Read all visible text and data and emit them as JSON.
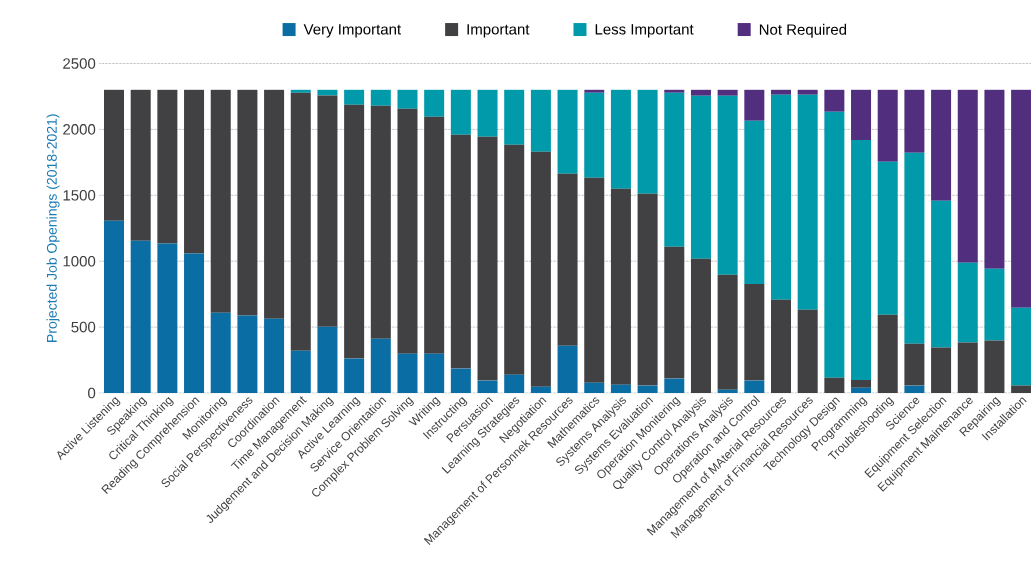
{
  "chart_data": {
    "type": "bar",
    "stacked": true,
    "ylabel": "Projected Job Openings (2018-2021)",
    "categories": [
      "Active Listening",
      "Speaking",
      "Critical Thinking",
      "Reading Comprehension",
      "Monitoring",
      "Social Perspectiveness",
      "Coordination",
      "Time Management",
      "Judgement and Decision Making",
      "Active Learning",
      "Service Orientation",
      "Complex Problem Solving",
      "Writing",
      "Instructing",
      "Persuasion",
      "Learning Strategies",
      "Negotiation",
      "Management of Personnek Resources",
      "Mathematics",
      "Systems Analysis",
      "Systems Evaluation",
      "Operation Monitering",
      "Quality Control Analysis",
      "Operations Analysis",
      "Operation and Control",
      "Management of MAterial Resources",
      "Management of Financial Resources",
      "Technology Design",
      "Programming",
      "Troubleshooting",
      "Science",
      "Equipment Selection",
      "Equipment Maintenance",
      "Repairing",
      "Installation"
    ],
    "series": [
      {
        "name": "Very Important",
        "color": "#0a6ea4",
        "values": [
          1307,
          1156,
          1135,
          1059,
          609,
          587,
          564,
          321,
          503,
          261,
          412,
          298,
          298,
          185,
          94,
          139,
          48,
          359,
          78,
          63,
          56,
          109,
          0,
          25,
          94,
          0,
          0,
          0,
          40,
          0,
          56,
          0,
          0,
          0,
          0
        ]
      },
      {
        "name": "Important",
        "color": "#414042",
        "values": [
          993,
          1144,
          1165,
          1241,
          1691,
          1713,
          1736,
          1957,
          1755,
          1926,
          1768,
          1859,
          1798,
          1775,
          1850,
          1745,
          1783,
          1305,
          1555,
          1487,
          1456,
          1001,
          1019,
          873,
          733,
          708,
          632,
          116,
          59,
          594,
          318,
          346,
          384,
          399,
          56
        ]
      },
      {
        "name": "Less Important",
        "color": "#009aaa",
        "values": [
          0,
          0,
          0,
          0,
          0,
          0,
          0,
          22,
          42,
          113,
          120,
          143,
          204,
          340,
          356,
          416,
          469,
          636,
          645,
          750,
          788,
          1168,
          1236,
          1357,
          1239,
          1555,
          1631,
          2018,
          1820,
          1161,
          1449,
          1113,
          605,
          544,
          591
        ]
      },
      {
        "name": "Not Required",
        "color": "#522e7f",
        "values": [
          0,
          0,
          0,
          0,
          0,
          0,
          0,
          0,
          0,
          0,
          0,
          0,
          0,
          0,
          0,
          0,
          0,
          0,
          22,
          0,
          0,
          22,
          45,
          45,
          234,
          37,
          37,
          166,
          381,
          545,
          477,
          841,
          1311,
          1357,
          1653
        ]
      }
    ],
    "ylim": [
      0,
      2500
    ],
    "yticks": [
      0,
      500,
      1000,
      1500,
      2000,
      2500
    ],
    "grid": "y",
    "legend": "top"
  }
}
